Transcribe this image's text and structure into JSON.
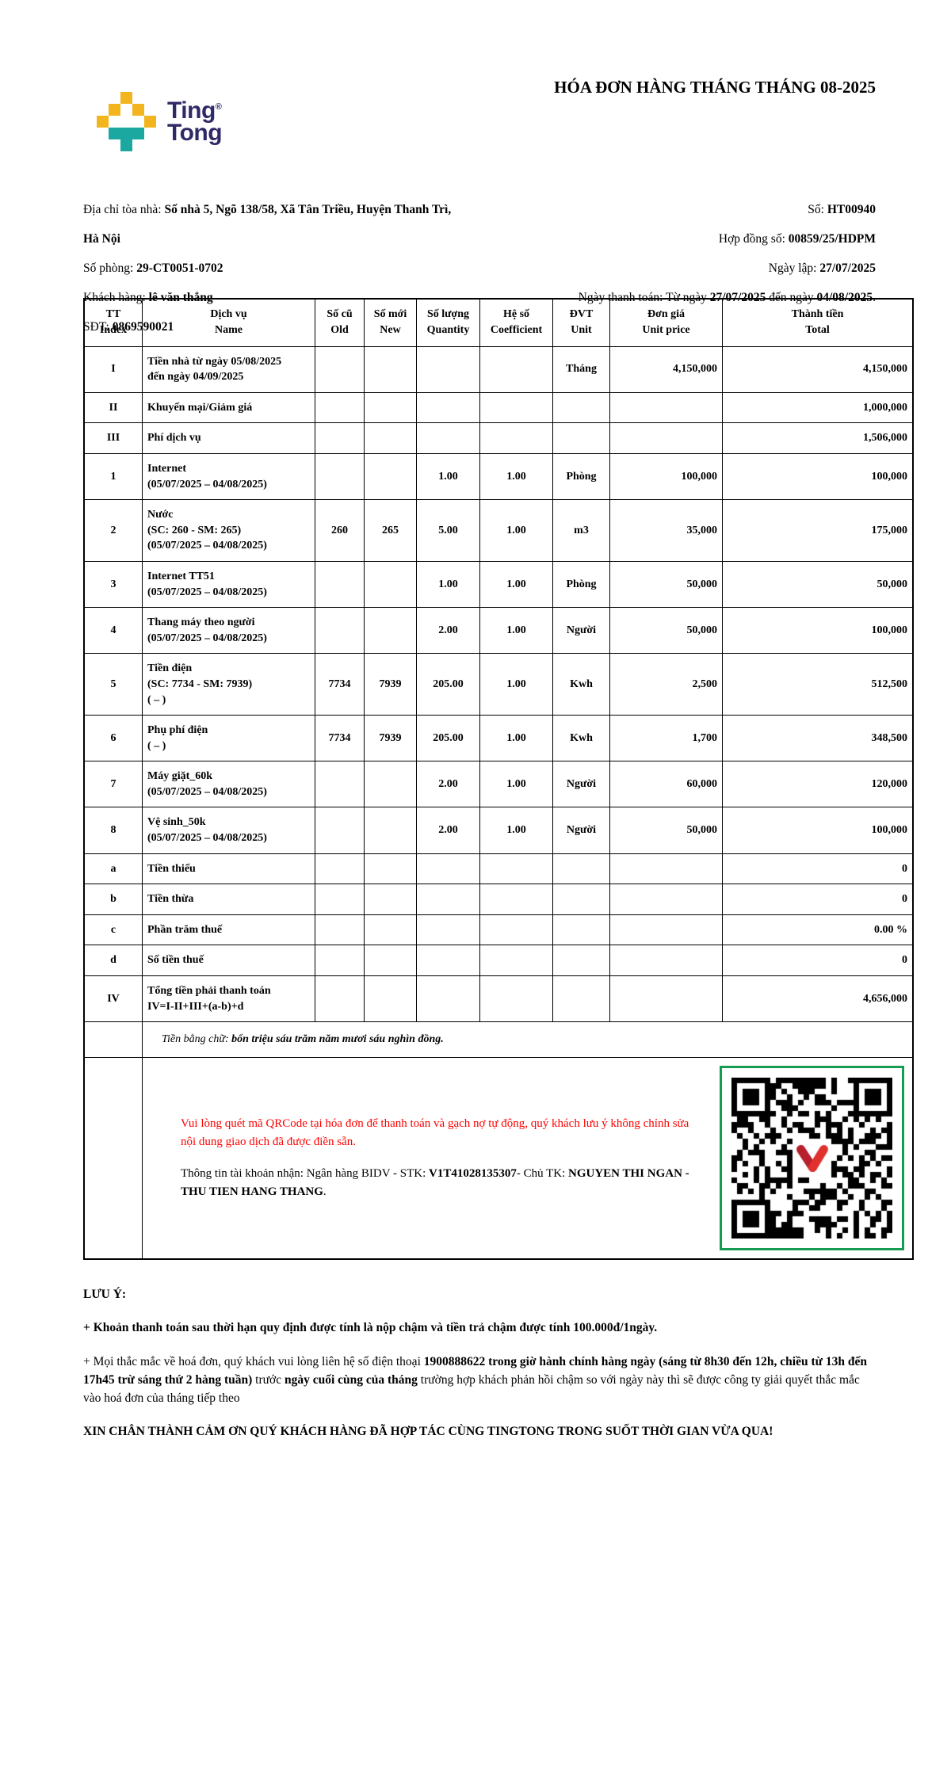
{
  "brand": {
    "line1": "Ting",
    "line2": "Tong",
    "registered": "®",
    "colors": {
      "yellow": "#F2B51D",
      "teal": "#1BA8A0",
      "navy": "#2E2A66"
    }
  },
  "header": {
    "title": "HÓA ĐƠN HÀNG THÁNG THÁNG 08-2025"
  },
  "meta_left": {
    "rows": [
      {
        "label": "Địa chỉ tòa nhà: ",
        "value": "Số nhà 5, Ngõ 138/58, Xã Tân Triều, Huyện Thanh Trì, Hà Nội"
      },
      {
        "label": "Số phòng: ",
        "value": "29-CT0051-0702"
      },
      {
        "label": "Khách hàng: ",
        "value": "lê văn thắng"
      },
      {
        "label": "SĐT: ",
        "value": "0869590021"
      }
    ]
  },
  "meta_right": {
    "rows": [
      {
        "label": "Số: ",
        "value": "HT00940"
      },
      {
        "label": "Hợp đồng số: ",
        "value": "00859/25/HDPM"
      },
      {
        "label": "Ngày lập: ",
        "value": "27/07/2025"
      }
    ],
    "payment_segments": [
      {
        "t": "Ngày thanh toán: Từ ngày ",
        "b": false
      },
      {
        "t": "27/07/2025",
        "b": true
      },
      {
        "t": " đến ngày ",
        "b": false
      },
      {
        "t": "04/08/2025",
        "b": true
      },
      {
        "t": ".",
        "b": false
      }
    ]
  },
  "table": {
    "headers": [
      "TT\nIndex",
      "Dịch vụ\nName",
      "Số cũ\nOld",
      "Số mới\nNew",
      "Số lượng\nQuantity",
      "Hệ số\nCoefficient",
      "ĐVT\nUnit",
      "Đơn giá\nUnit price",
      "Thành tiền\nTotal"
    ],
    "rows": [
      {
        "tt": "I",
        "name": "Tiền nhà từ ngày 05/08/2025\nđến ngày 04/09/2025",
        "old": "",
        "new": "",
        "qty": "",
        "coef": "",
        "unit": "Tháng",
        "price": "4,150,000",
        "total": "4,150,000"
      },
      {
        "tt": "II",
        "name": "Khuyến mại/Giảm giá",
        "old": "",
        "new": "",
        "qty": "",
        "coef": "",
        "unit": "",
        "price": "",
        "total": "1,000,000"
      },
      {
        "tt": "III",
        "name": "Phí dịch vụ",
        "old": "",
        "new": "",
        "qty": "",
        "coef": "",
        "unit": "",
        "price": "",
        "total": "1,506,000"
      },
      {
        "tt": "1",
        "name": "Internet\n(05/07/2025 – 04/08/2025)",
        "old": "",
        "new": "",
        "qty": "1.00",
        "coef": "1.00",
        "unit": "Phòng",
        "price": "100,000",
        "total": "100,000"
      },
      {
        "tt": "2",
        "name": "Nước\n(SC: 260 - SM: 265)\n(05/07/2025 – 04/08/2025)",
        "old": "260",
        "new": "265",
        "qty": "5.00",
        "coef": "1.00",
        "unit": "m3",
        "price": "35,000",
        "total": "175,000"
      },
      {
        "tt": "3",
        "name": "Internet TT51\n(05/07/2025 – 04/08/2025)",
        "old": "",
        "new": "",
        "qty": "1.00",
        "coef": "1.00",
        "unit": "Phòng",
        "price": "50,000",
        "total": "50,000"
      },
      {
        "tt": "4",
        "name": "Thang máy theo người\n(05/07/2025 – 04/08/2025)",
        "old": "",
        "new": "",
        "qty": "2.00",
        "coef": "1.00",
        "unit": "Người",
        "price": "50,000",
        "total": "100,000"
      },
      {
        "tt": "5",
        "name": "Tiền điện\n(SC: 7734 - SM: 7939)\n( – )",
        "old": "7734",
        "new": "7939",
        "qty": "205.00",
        "coef": "1.00",
        "unit": "Kwh",
        "price": "2,500",
        "total": "512,500"
      },
      {
        "tt": "6",
        "name": "Phụ phí điện\n( – )",
        "old": "7734",
        "new": "7939",
        "qty": "205.00",
        "coef": "1.00",
        "unit": "Kwh",
        "price": "1,700",
        "total": "348,500"
      },
      {
        "tt": "7",
        "name": "Máy giặt_60k\n(05/07/2025 – 04/08/2025)",
        "old": "",
        "new": "",
        "qty": "2.00",
        "coef": "1.00",
        "unit": "Người",
        "price": "60,000",
        "total": "120,000"
      },
      {
        "tt": "8",
        "name": "Vệ sinh_50k\n(05/07/2025 – 04/08/2025)",
        "old": "",
        "new": "",
        "qty": "2.00",
        "coef": "1.00",
        "unit": "Người",
        "price": "50,000",
        "total": "100,000"
      },
      {
        "tt": "a",
        "name": "Tiền thiếu",
        "old": "",
        "new": "",
        "qty": "",
        "coef": "",
        "unit": "",
        "price": "",
        "total": "0"
      },
      {
        "tt": "b",
        "name": "Tiền thừa",
        "old": "",
        "new": "",
        "qty": "",
        "coef": "",
        "unit": "",
        "price": "",
        "total": "0"
      },
      {
        "tt": "c",
        "name": "Phần trăm thuế",
        "old": "",
        "new": "",
        "qty": "",
        "coef": "",
        "unit": "",
        "price": "",
        "total": "0.00 %"
      },
      {
        "tt": "d",
        "name": "Số tiền thuế",
        "old": "",
        "new": "",
        "qty": "",
        "coef": "",
        "unit": "",
        "price": "",
        "total": "0"
      },
      {
        "tt": "IV",
        "name": "Tổng tiền phải thanh toán\nIV=I-II+III+(a-b)+d",
        "old": "",
        "new": "",
        "qty": "",
        "coef": "",
        "unit": "",
        "price": "",
        "total": "4,656,000"
      }
    ],
    "amount_in_words_label": "Tiền bằng chữ: ",
    "amount_in_words": "bốn triệu sáu trăm năm mươi sáu nghìn đồng."
  },
  "payment": {
    "qr_note": "Vui lòng quét mã QRCode tại hóa đơn để thanh toán và gạch nợ tự động, quý khách lưu ý không chỉnh sửa nội dung giao dịch đã được điền sẵn.",
    "account_segments": [
      {
        "t": "Thông tin tài khoản nhận: Ngân hàng BIDV - STK: ",
        "b": false
      },
      {
        "t": "V1T41028135307",
        "b": true
      },
      {
        "t": "- Chủ TK: ",
        "b": false
      },
      {
        "t": "NGUYEN THI NGAN - THU TIEN HANG THANG",
        "b": true
      },
      {
        "t": ".",
        "b": false
      }
    ],
    "qr_colors": {
      "border": "#169C50",
      "module": "#000000",
      "logo_red": "#E0312E",
      "logo_dark_red": "#B7202C"
    }
  },
  "notes": {
    "heading": "LƯU Ý:",
    "note1": "+ Khoản thanh toán sau thời hạn quy định được tính là nộp chậm và tiền trả chậm được tính 100.000đ/1ngày.",
    "note2_segments": [
      {
        "t": "+ Mọi thắc mắc về hoá đơn, quý khách vui lòng liên hệ số điện thoại ",
        "b": false
      },
      {
        "t": "1900888622 trong giờ hành chính hàng ngày (sáng từ 8h30 đến 12h, chiều từ 13h đến 17h45 trừ sáng thứ 2 hàng tuần)",
        "b": true
      },
      {
        "t": " trước ",
        "b": false
      },
      {
        "t": "ngày cuối cùng của tháng",
        "b": true
      },
      {
        "t": " trường hợp khách phản hồi chậm so với ngày này thì sẽ được công ty giải quyết thắc mắc vào hoá đơn của tháng tiếp theo",
        "b": false
      }
    ],
    "thanks": "XIN CHÂN THÀNH CẢM ƠN QUÝ KHÁCH HÀNG ĐÃ HỢP TÁC CÙNG TINGTONG TRONG SUỐT THỜI GIAN VỪA QUA!"
  }
}
